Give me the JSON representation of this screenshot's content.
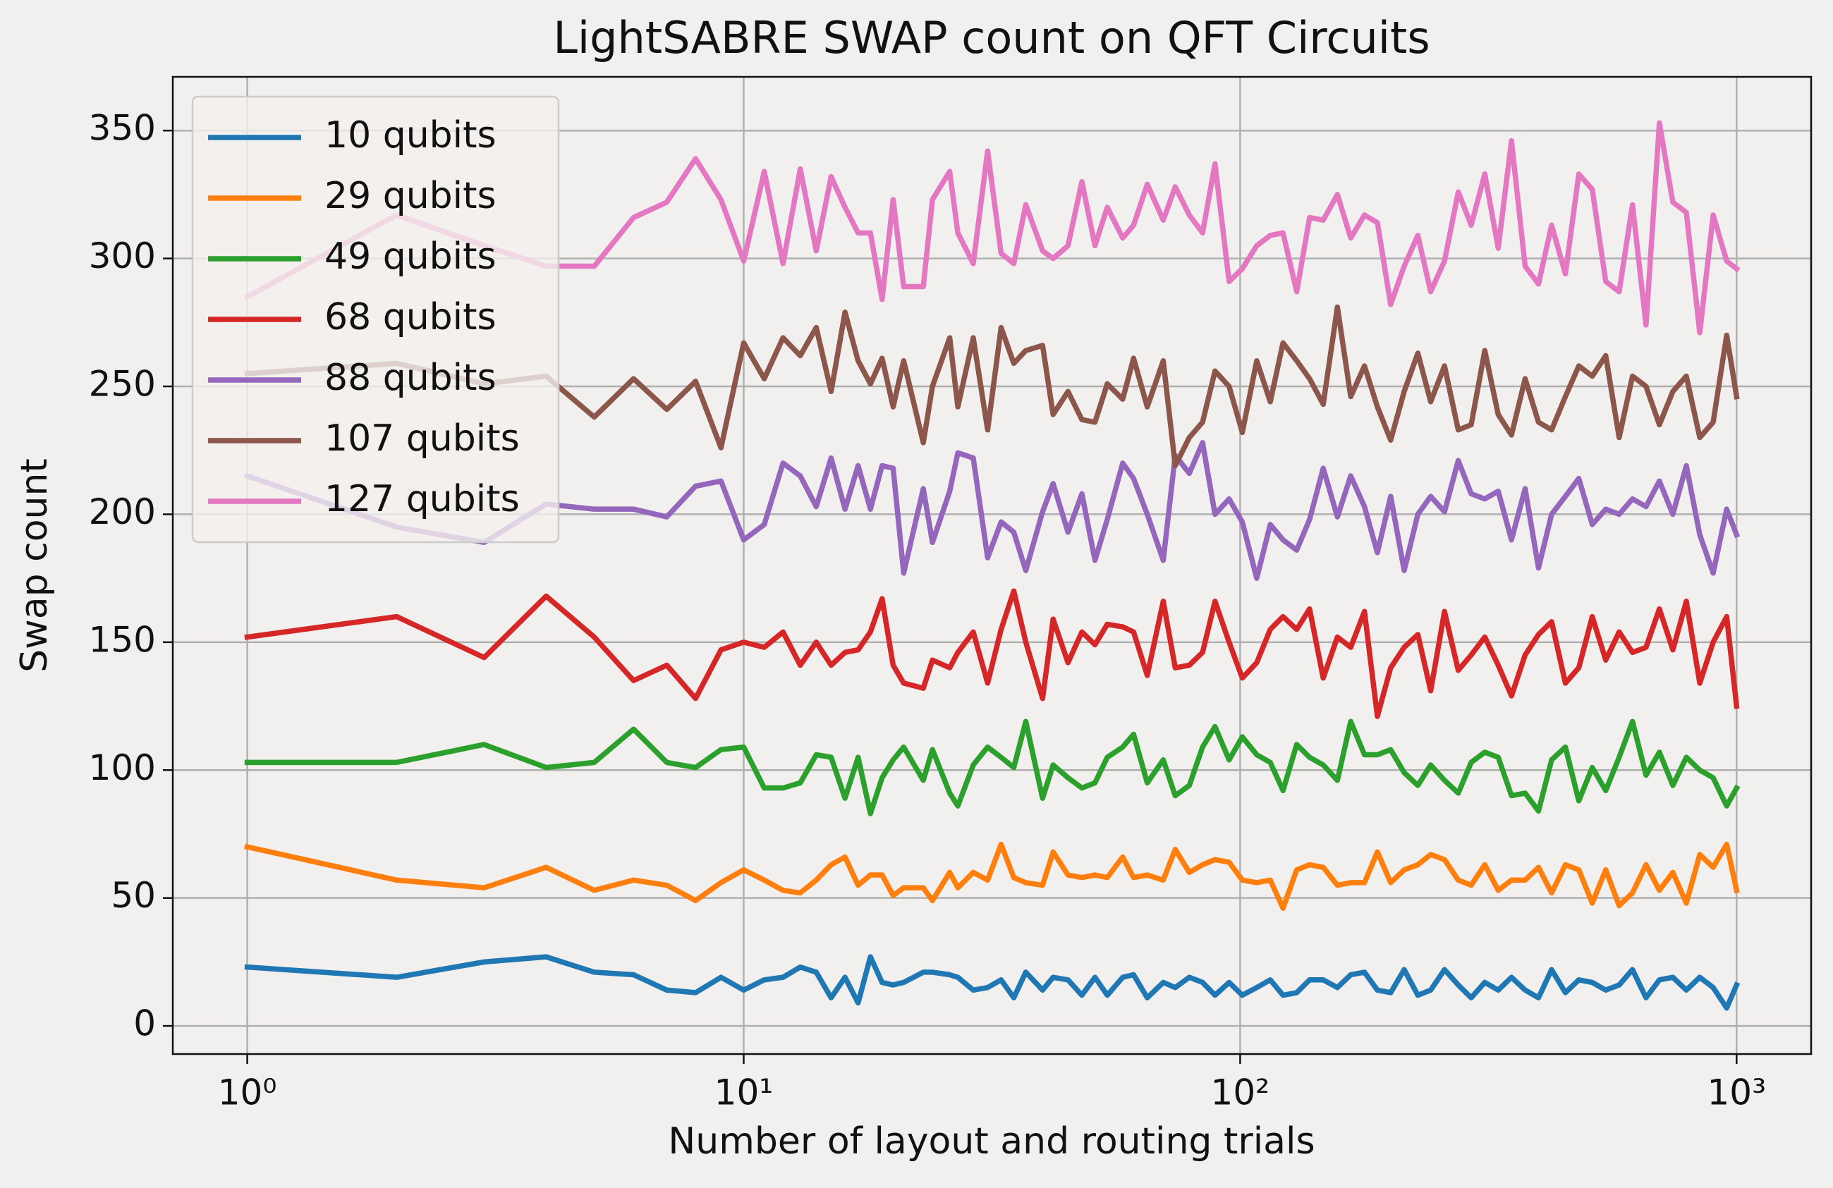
{
  "chart_data": {
    "type": "line",
    "title": "LightSABRE SWAP count on QFT Circuits",
    "x_label": "Number of layout and routing trials",
    "y_label": "Swap count",
    "x_scale": "log",
    "grid": true,
    "legend": "upper left",
    "xlim": [
      0.708,
      1413
    ],
    "ylim": [
      -11,
      371
    ],
    "xticks": [
      {
        "value": 1,
        "label": "10⁰"
      },
      {
        "value": 10,
        "label": "10¹"
      },
      {
        "value": 100,
        "label": "10²"
      },
      {
        "value": 1000,
        "label": "10³"
      }
    ],
    "yticks": [
      0,
      50,
      100,
      150,
      200,
      250,
      300,
      350
    ],
    "x": [
      1,
      2,
      3,
      4,
      5,
      6,
      7,
      8,
      9,
      10,
      11,
      12,
      13,
      14,
      15,
      16,
      17,
      18,
      19,
      20,
      21,
      23,
      24,
      26,
      27,
      29,
      31,
      33,
      35,
      37,
      40,
      42,
      45,
      48,
      51,
      54,
      58,
      61,
      65,
      70,
      74,
      79,
      84,
      89,
      95,
      101,
      108,
      115,
      122,
      130,
      138,
      147,
      157,
      167,
      178,
      189,
      201,
      214,
      228,
      242,
      258,
      275,
      292,
      311,
      331,
      352,
      375,
      399,
      424,
      452,
      481,
      512,
      545,
      580,
      617,
      657,
      699,
      744,
      792,
      843,
      897,
      955,
      1000
    ],
    "series": [
      {
        "name": "10 qubits",
        "color": "#1f77b4",
        "values": [
          23,
          19,
          25,
          27,
          21,
          20,
          14,
          13,
          19,
          14,
          18,
          19,
          23,
          21,
          11,
          19,
          9,
          27,
          17,
          16,
          17,
          21,
          21,
          20,
          19,
          14,
          15,
          18,
          11,
          21,
          14,
          19,
          18,
          12,
          19,
          12,
          19,
          20,
          11,
          17,
          15,
          19,
          17,
          12,
          17,
          12,
          15,
          18,
          12,
          13,
          18,
          18,
          15,
          20,
          21,
          14,
          13,
          22,
          12,
          14,
          22,
          16,
          11,
          17,
          14,
          19,
          14,
          11,
          22,
          13,
          18,
          17,
          14,
          16,
          22,
          11,
          18,
          19,
          14,
          19,
          15,
          7,
          16
        ]
      },
      {
        "name": "29 qubits",
        "color": "#ff7f0e",
        "values": [
          70,
          57,
          54,
          62,
          53,
          57,
          55,
          49,
          56,
          61,
          57,
          53,
          52,
          57,
          63,
          66,
          55,
          59,
          59,
          51,
          54,
          54,
          49,
          60,
          54,
          60,
          57,
          71,
          58,
          56,
          55,
          68,
          59,
          58,
          59,
          58,
          66,
          58,
          59,
          57,
          69,
          60,
          63,
          65,
          64,
          57,
          56,
          57,
          46,
          61,
          63,
          62,
          55,
          56,
          56,
          68,
          56,
          61,
          63,
          67,
          65,
          57,
          55,
          63,
          53,
          57,
          57,
          62,
          52,
          63,
          61,
          48,
          61,
          47,
          52,
          63,
          53,
          60,
          48,
          67,
          62,
          71,
          53
        ]
      },
      {
        "name": "49 qubits",
        "color": "#2ca02c",
        "values": [
          103,
          103,
          110,
          101,
          103,
          116,
          103,
          101,
          108,
          109,
          93,
          93,
          95,
          106,
          105,
          89,
          105,
          83,
          97,
          104,
          109,
          96,
          108,
          91,
          86,
          102,
          109,
          105,
          101,
          119,
          89,
          102,
          97,
          93,
          95,
          105,
          109,
          114,
          95,
          104,
          90,
          94,
          109,
          117,
          104,
          113,
          106,
          103,
          92,
          110,
          105,
          102,
          96,
          119,
          106,
          106,
          108,
          99,
          94,
          102,
          96,
          91,
          103,
          107,
          105,
          90,
          91,
          84,
          104,
          109,
          88,
          101,
          92,
          105,
          119,
          98,
          107,
          94,
          105,
          100,
          97,
          86,
          93
        ]
      },
      {
        "name": "68 qubits",
        "color": "#d62728",
        "values": [
          152,
          160,
          144,
          168,
          152,
          135,
          141,
          128,
          147,
          150,
          148,
          154,
          141,
          150,
          141,
          146,
          147,
          154,
          167,
          141,
          134,
          132,
          143,
          140,
          146,
          154,
          134,
          155,
          170,
          150,
          128,
          159,
          142,
          154,
          149,
          157,
          156,
          154,
          137,
          166,
          140,
          141,
          146,
          166,
          150,
          136,
          142,
          155,
          160,
          155,
          163,
          136,
          152,
          148,
          162,
          121,
          140,
          148,
          153,
          131,
          162,
          139,
          145,
          152,
          141,
          129,
          145,
          153,
          158,
          134,
          140,
          160,
          143,
          154,
          146,
          148,
          163,
          147,
          166,
          134,
          150,
          160,
          125
        ]
      },
      {
        "name": "88 qubits",
        "color": "#9467bd",
        "values": [
          215,
          195,
          189,
          204,
          202,
          202,
          199,
          211,
          213,
          190,
          196,
          220,
          215,
          203,
          222,
          202,
          219,
          202,
          219,
          218,
          177,
          210,
          189,
          209,
          224,
          222,
          183,
          197,
          193,
          178,
          201,
          212,
          193,
          208,
          182,
          198,
          220,
          214,
          200,
          182,
          223,
          216,
          228,
          200,
          206,
          197,
          175,
          196,
          190,
          186,
          198,
          218,
          199,
          215,
          203,
          185,
          207,
          178,
          200,
          207,
          201,
          221,
          208,
          206,
          209,
          190,
          210,
          179,
          200,
          207,
          214,
          196,
          202,
          200,
          206,
          203,
          213,
          200,
          219,
          192,
          177,
          202,
          192
        ]
      },
      {
        "name": "107 qubits",
        "color": "#8c564b",
        "values": [
          255,
          259,
          251,
          254,
          238,
          253,
          241,
          252,
          226,
          267,
          253,
          269,
          262,
          273,
          248,
          279,
          260,
          251,
          261,
          242,
          260,
          228,
          250,
          269,
          242,
          269,
          233,
          273,
          259,
          264,
          266,
          239,
          248,
          237,
          236,
          251,
          245,
          261,
          242,
          260,
          219,
          230,
          236,
          256,
          250,
          232,
          260,
          244,
          267,
          260,
          253,
          243,
          281,
          246,
          258,
          242,
          229,
          248,
          263,
          244,
          258,
          233,
          235,
          264,
          239,
          231,
          253,
          236,
          233,
          246,
          258,
          254,
          262,
          230,
          254,
          250,
          235,
          248,
          254,
          230,
          236,
          270,
          246
        ]
      },
      {
        "name": "127 qubits",
        "color": "#e377c2",
        "values": [
          285,
          317,
          305,
          297,
          297,
          316,
          322,
          339,
          323,
          299,
          334,
          298,
          335,
          303,
          332,
          320,
          310,
          310,
          284,
          323,
          289,
          289,
          323,
          334,
          310,
          298,
          342,
          302,
          298,
          321,
          303,
          300,
          305,
          330,
          305,
          320,
          308,
          313,
          329,
          315,
          328,
          317,
          310,
          337,
          291,
          296,
          305,
          309,
          310,
          287,
          316,
          315,
          325,
          308,
          317,
          314,
          282,
          297,
          309,
          287,
          299,
          326,
          313,
          333,
          304,
          346,
          297,
          290,
          313,
          294,
          333,
          327,
          291,
          287,
          321,
          274,
          353,
          322,
          318,
          271,
          317,
          299,
          296
        ]
      }
    ]
  }
}
